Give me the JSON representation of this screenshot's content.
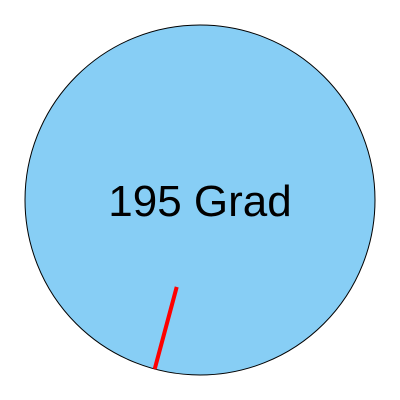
{
  "dial": {
    "angle_degrees": 195,
    "label": "195 Grad",
    "face_color": "#87CEF5",
    "outline_color": "#000000",
    "needle_color": "#FF0000"
  }
}
